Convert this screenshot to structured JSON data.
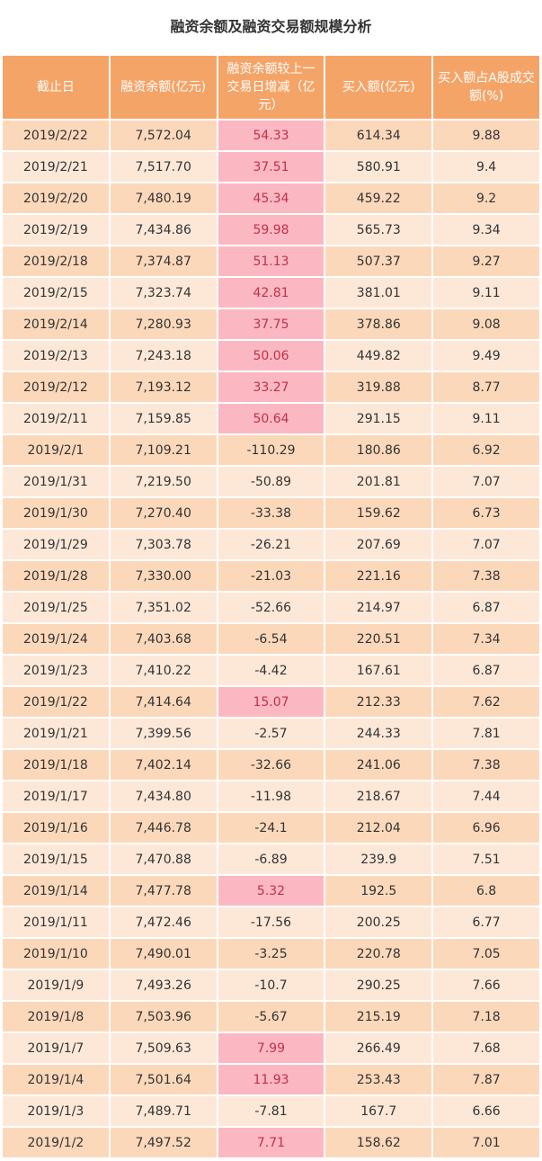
{
  "title": "融资余额及融资交易额规模分析",
  "table": {
    "header": [
      "截止日",
      "融资余额(亿元)",
      "融资余额较上一交易日增减（亿元）",
      "买入额(亿元)",
      "买入额占A股成交额(%)"
    ],
    "rows": [
      [
        "2019/2/22",
        "7,572.04",
        "54.33",
        "614.34",
        "9.88"
      ],
      [
        "2019/2/21",
        "7,517.70",
        "37.51",
        "580.91",
        "9.4"
      ],
      [
        "2019/2/20",
        "7,480.19",
        "45.34",
        "459.22",
        "9.2"
      ],
      [
        "2019/2/19",
        "7,434.86",
        "59.98",
        "565.73",
        "9.34"
      ],
      [
        "2019/2/18",
        "7,374.87",
        "51.13",
        "507.37",
        "9.27"
      ],
      [
        "2019/2/15",
        "7,323.74",
        "42.81",
        "381.01",
        "9.11"
      ],
      [
        "2019/2/14",
        "7,280.93",
        "37.75",
        "378.86",
        "9.08"
      ],
      [
        "2019/2/13",
        "7,243.18",
        "50.06",
        "449.82",
        "9.49"
      ],
      [
        "2019/2/12",
        "7,193.12",
        "33.27",
        "319.88",
        "8.77"
      ],
      [
        "2019/2/11",
        "7,159.85",
        "50.64",
        "291.15",
        "9.11"
      ],
      [
        "2019/2/1",
        "7,109.21",
        "-110.29",
        "180.86",
        "6.92"
      ],
      [
        "2019/1/31",
        "7,219.50",
        "-50.89",
        "201.81",
        "7.07"
      ],
      [
        "2019/1/30",
        "7,270.40",
        "-33.38",
        "159.62",
        "6.73"
      ],
      [
        "2019/1/29",
        "7,303.78",
        "-26.21",
        "207.69",
        "7.07"
      ],
      [
        "2019/1/28",
        "7,330.00",
        "-21.03",
        "221.16",
        "7.38"
      ],
      [
        "2019/1/25",
        "7,351.02",
        "-52.66",
        "214.97",
        "6.87"
      ],
      [
        "2019/1/24",
        "7,403.68",
        "-6.54",
        "220.51",
        "7.34"
      ],
      [
        "2019/1/23",
        "7,410.22",
        "-4.42",
        "167.61",
        "6.87"
      ],
      [
        "2019/1/22",
        "7,414.64",
        "15.07",
        "212.33",
        "7.62"
      ],
      [
        "2019/1/21",
        "7,399.56",
        "-2.57",
        "244.33",
        "7.81"
      ],
      [
        "2019/1/18",
        "7,402.14",
        "-32.66",
        "241.06",
        "7.38"
      ],
      [
        "2019/1/17",
        "7,434.80",
        "-11.98",
        "218.67",
        "7.44"
      ],
      [
        "2019/1/16",
        "7,446.78",
        "-24.1",
        "212.04",
        "6.96"
      ],
      [
        "2019/1/15",
        "7,470.88",
        "-6.89",
        "239.9",
        "7.51"
      ],
      [
        "2019/1/14",
        "7,477.78",
        "5.32",
        "192.5",
        "6.8"
      ],
      [
        "2019/1/11",
        "7,472.46",
        "-17.56",
        "200.25",
        "6.77"
      ],
      [
        "2019/1/10",
        "7,490.01",
        "-3.25",
        "220.78",
        "7.05"
      ],
      [
        "2019/1/9",
        "7,493.26",
        "-10.7",
        "290.25",
        "7.66"
      ],
      [
        "2019/1/8",
        "7,503.96",
        "-5.67",
        "215.19",
        "7.18"
      ],
      [
        "2019/1/7",
        "7,509.63",
        "7.99",
        "266.49",
        "7.68"
      ],
      [
        "2019/1/4",
        "7,501.64",
        "11.93",
        "253.43",
        "7.87"
      ],
      [
        "2019/1/3",
        "7,489.71",
        "-7.81",
        "167.7",
        "6.66"
      ],
      [
        "2019/1/2",
        "7,497.52",
        "7.71",
        "158.62",
        "7.01"
      ]
    ]
  }
}
